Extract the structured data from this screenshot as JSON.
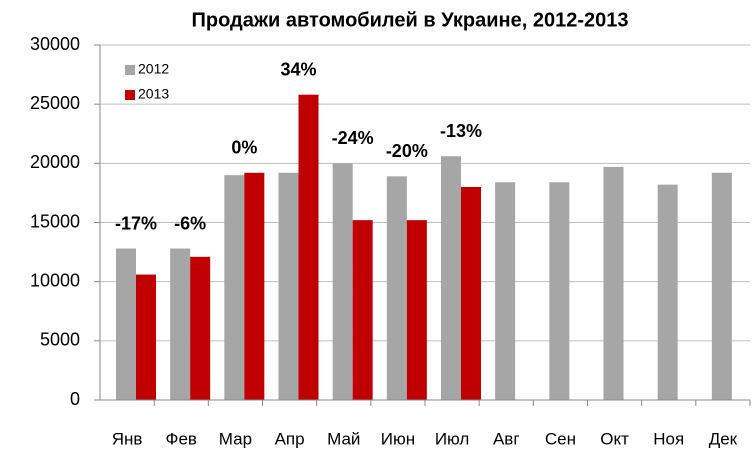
{
  "chart_data": {
    "type": "bar",
    "title": "Продажи автомобилей в Украине, 2012-2013",
    "categories": [
      "Янв",
      "Фев",
      "Мар",
      "Апр",
      "Май",
      "Июн",
      "Июл",
      "Авг",
      "Сен",
      "Окт",
      "Ноя",
      "Дек"
    ],
    "series": [
      {
        "name": "2012",
        "color": "#a6a6a6",
        "values": [
          12800,
          12800,
          19000,
          19200,
          20000,
          18900,
          20600,
          18400,
          18400,
          19700,
          18200,
          19200
        ]
      },
      {
        "name": "2013",
        "color": "#c00000",
        "values": [
          10600,
          12100,
          19200,
          25800,
          15200,
          15200,
          18000,
          null,
          null,
          null,
          null,
          null
        ]
      }
    ],
    "annotations": [
      "-17%",
      "-6%",
      "0%",
      "34%",
      "-24%",
      "-20%",
      "-13%",
      null,
      null,
      null,
      null,
      null
    ],
    "ylim": [
      0,
      30000
    ],
    "yticks": [
      0,
      5000,
      10000,
      15000,
      20000,
      25000,
      30000
    ],
    "grid": true,
    "legend": "top-left"
  }
}
